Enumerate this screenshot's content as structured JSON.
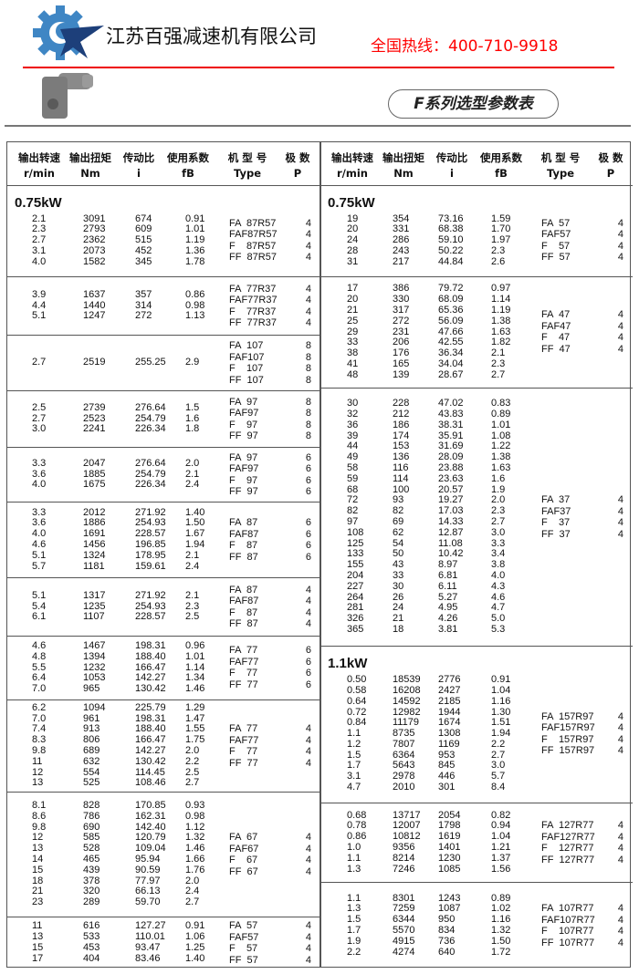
{
  "header": {
    "company": "江苏百强减速机有限公司",
    "hotline": "全国热线：400-710-9918",
    "badge": "F系列选型参数表",
    "logo_icon": "gear-star-logo",
    "product_image": "gearbox-image",
    "colors": {
      "hotline": "#ff0000",
      "rule": "#e00000",
      "logo_gear": "#3f86c4",
      "logo_star": "#1d3f7a"
    }
  },
  "columns": [
    {
      "cn": "输出转速",
      "en": "r/min"
    },
    {
      "cn": "输出扭矩",
      "en": "Nm"
    },
    {
      "cn": "传动比",
      "en": "i"
    },
    {
      "cn": "使用系数",
      "en": "fB"
    },
    {
      "cn": "机 型 号",
      "en": "Type"
    },
    {
      "cn": "极  数",
      "en": "P"
    }
  ],
  "left": [
    {
      "power": "0.75kW",
      "rows": [
        [
          "2.1",
          "3091",
          "674",
          "0.91"
        ],
        [
          "2.3",
          "2793",
          "609",
          "1.01"
        ],
        [
          "2.7",
          "2362",
          "515",
          "1.19"
        ],
        [
          "3.1",
          "2073",
          "452",
          "1.36"
        ],
        [
          "4.0",
          "1582",
          "345",
          "1.78"
        ]
      ],
      "types": [
        "FA  87R57",
        "FAF87R57",
        "F    87R57",
        "FF  87R57"
      ],
      "poles": [
        "4",
        "4",
        "4",
        "4"
      ]
    },
    {
      "rows": [
        [
          "3.9",
          "1637",
          "357",
          "0.86"
        ],
        [
          "4.4",
          "1440",
          "314",
          "0.98"
        ],
        [
          "5.1",
          "1247",
          "272",
          "1.13"
        ]
      ],
      "types": [
        "FA  77R37",
        "FAF77R37",
        "F    77R37",
        "FF  77R37"
      ],
      "poles": [
        "4",
        "4",
        "4",
        "4"
      ]
    },
    {
      "rows": [
        [
          "2.7",
          "2519",
          "255.25",
          "2.9"
        ]
      ],
      "types": [
        "FA  107",
        "FAF107",
        "F    107",
        "FF  107"
      ],
      "poles": [
        "8",
        "8",
        "8",
        "8"
      ]
    },
    {
      "rows": [
        [
          "2.5",
          "2739",
          "276.64",
          "1.5"
        ],
        [
          "2.7",
          "2523",
          "254.79",
          "1.6"
        ],
        [
          "3.0",
          "2241",
          "226.34",
          "1.8"
        ]
      ],
      "types": [
        "FA  97",
        "FAF97",
        "F    97",
        "FF  97"
      ],
      "poles": [
        "8",
        "8",
        "8",
        "8"
      ]
    },
    {
      "rows": [
        [
          "3.3",
          "2047",
          "276.64",
          "2.0"
        ],
        [
          "3.6",
          "1885",
          "254.79",
          "2.1"
        ],
        [
          "4.0",
          "1675",
          "226.34",
          "2.4"
        ]
      ],
      "types": [
        "FA  97",
        "FAF97",
        "F    97",
        "FF  97"
      ],
      "poles": [
        "6",
        "6",
        "6",
        "6"
      ]
    },
    {
      "rows": [
        [
          "3.3",
          "2012",
          "271.92",
          "1.40"
        ],
        [
          "3.6",
          "1886",
          "254.93",
          "1.50"
        ],
        [
          "4.0",
          "1691",
          "228.57",
          "1.67"
        ],
        [
          "4.6",
          "1456",
          "196.85",
          "1.94"
        ],
        [
          "5.1",
          "1324",
          "178.95",
          "2.1"
        ],
        [
          "5.7",
          "1181",
          "159.61",
          "2.4"
        ]
      ],
      "types": [
        "FA  87",
        "FAF87",
        "F    87",
        "FF  87"
      ],
      "poles": [
        "6",
        "6",
        "6",
        "6"
      ]
    },
    {
      "rows": [
        [
          "5.1",
          "1317",
          "271.92",
          "2.1"
        ],
        [
          "5.4",
          "1235",
          "254.93",
          "2.3"
        ],
        [
          "6.1",
          "1107",
          "228.57",
          "2.5"
        ]
      ],
      "types": [
        "FA  87",
        "FAF87",
        "F    87",
        "FF  87"
      ],
      "poles": [
        "4",
        "4",
        "4",
        "4"
      ]
    },
    {
      "rows": [
        [
          "4.6",
          "1467",
          "198.31",
          "0.96"
        ],
        [
          "4.8",
          "1394",
          "188.40",
          "1.01"
        ],
        [
          "5.5",
          "1232",
          "166.47",
          "1.14"
        ],
        [
          "6.4",
          "1053",
          "142.27",
          "1.34"
        ],
        [
          "7.0",
          "965",
          "130.42",
          "1.46"
        ]
      ],
      "types": [
        "FA  77",
        "FAF77",
        "F    77",
        "FF  77"
      ],
      "poles": [
        "6",
        "6",
        "6",
        "6"
      ]
    },
    {
      "rows": [
        [
          "6.2",
          "1094",
          "225.79",
          "1.29"
        ],
        [
          "7.0",
          "961",
          "198.31",
          "1.47"
        ],
        [
          "7.4",
          "913",
          "188.40",
          "1.55"
        ],
        [
          "8.3",
          "806",
          "166.47",
          "1.75"
        ],
        [
          "9.8",
          "689",
          "142.27",
          "2.0"
        ],
        [
          "11",
          "632",
          "130.42",
          "2.2"
        ],
        [
          "12",
          "554",
          "114.45",
          "2.5"
        ],
        [
          "13",
          "525",
          "108.46",
          "2.7"
        ]
      ],
      "types": [
        "FA  77",
        "FAF77",
        "F    77",
        "FF  77"
      ],
      "poles": [
        "4",
        "4",
        "4",
        "4"
      ]
    },
    {
      "rows": [
        [
          "8.1",
          "828",
          "170.85",
          "0.93"
        ],
        [
          "8.6",
          "786",
          "162.31",
          "0.98"
        ],
        [
          "9.8",
          "690",
          "142.40",
          "1.12"
        ],
        [
          "12",
          "585",
          "120.79",
          "1.32"
        ],
        [
          "13",
          "528",
          "109.04",
          "1.46"
        ],
        [
          "14",
          "465",
          "95.94",
          "1.66"
        ],
        [
          "15",
          "439",
          "90.59",
          "1.76"
        ],
        [
          "18",
          "378",
          "77.97",
          "2.0"
        ],
        [
          "21",
          "320",
          "66.13",
          "2.4"
        ],
        [
          "23",
          "289",
          "59.70",
          "2.7"
        ]
      ],
      "types": [
        "FA  67",
        "FAF67",
        "F    67",
        "FF  67"
      ],
      "poles": [
        "4",
        "4",
        "4",
        "4"
      ]
    },
    {
      "rows": [
        [
          "11",
          "616",
          "127.27",
          "0.91"
        ],
        [
          "13",
          "533",
          "110.01",
          "1.06"
        ],
        [
          "15",
          "453",
          "93.47",
          "1.25"
        ],
        [
          "17",
          "404",
          "83.46",
          "1.40"
        ]
      ],
      "types": [
        "FA  57",
        "FAF57",
        "F    57",
        "FF  57"
      ],
      "poles": [
        "4",
        "4",
        "4",
        "4"
      ]
    }
  ],
  "right": [
    {
      "power": "0.75kW",
      "rows": [
        [
          "19",
          "354",
          "73.16",
          "1.59"
        ],
        [
          "20",
          "331",
          "68.38",
          "1.70"
        ],
        [
          "24",
          "286",
          "59.10",
          "1.97"
        ],
        [
          "28",
          "243",
          "50.22",
          "2.3"
        ],
        [
          "31",
          "217",
          "44.84",
          "2.6"
        ]
      ],
      "types": [
        "FA  57",
        "FAF57",
        "F    57",
        "FF  57"
      ],
      "poles": [
        "4",
        "4",
        "4",
        "4"
      ]
    },
    {
      "rows": [
        [
          "17",
          "386",
          "79.72",
          "0.97"
        ],
        [
          "20",
          "330",
          "68.09",
          "1.14"
        ],
        [
          "21",
          "317",
          "65.36",
          "1.19"
        ],
        [
          "25",
          "272",
          "56.09",
          "1.38"
        ],
        [
          "29",
          "231",
          "47.66",
          "1.63"
        ],
        [
          "33",
          "206",
          "42.55",
          "1.82"
        ],
        [
          "38",
          "176",
          "36.34",
          "2.1"
        ],
        [
          "41",
          "165",
          "34.04",
          "2.3"
        ],
        [
          "48",
          "139",
          "28.67",
          "2.7"
        ]
      ],
      "types": [
        "FA  47",
        "FAF47",
        "F    47",
        "FF  47"
      ],
      "poles": [
        "4",
        "4",
        "4",
        "4"
      ]
    },
    {
      "rows": [
        [
          "30",
          "228",
          "47.02",
          "0.83"
        ],
        [
          "32",
          "212",
          "43.83",
          "0.89"
        ],
        [
          "36",
          "186",
          "38.31",
          "1.01"
        ],
        [
          "39",
          "174",
          "35.91",
          "1.08"
        ],
        [
          "44",
          "153",
          "31.69",
          "1.22"
        ],
        [
          "49",
          "136",
          "28.09",
          "1.38"
        ],
        [
          "58",
          "116",
          "23.88",
          "1.63"
        ],
        [
          "59",
          "114",
          "23.63",
          "1.6"
        ],
        [
          "68",
          "100",
          "20.57",
          "1.9"
        ],
        [
          "72",
          "93",
          "19.27",
          "2.0"
        ],
        [
          "82",
          "82",
          "17.03",
          "2.3"
        ],
        [
          "97",
          "69",
          "14.33",
          "2.7"
        ],
        [
          "108",
          "62",
          "12.87",
          "3.0"
        ],
        [
          "125",
          "54",
          "11.08",
          "3.3"
        ],
        [
          "133",
          "50",
          "10.42",
          "3.4"
        ],
        [
          "155",
          "43",
          "8.97",
          "3.8"
        ],
        [
          "204",
          "33",
          "6.81",
          "4.0"
        ],
        [
          "227",
          "30",
          "6.11",
          "4.3"
        ],
        [
          "264",
          "26",
          "5.27",
          "4.6"
        ],
        [
          "281",
          "24",
          "4.95",
          "4.7"
        ],
        [
          "326",
          "21",
          "4.26",
          "5.0"
        ],
        [
          "365",
          "18",
          "3.81",
          "5.3"
        ]
      ],
      "types": [
        "FA  37",
        "FAF37",
        "F    37",
        "FF  37"
      ],
      "poles": [
        "4",
        "4",
        "4",
        "4"
      ]
    },
    {
      "power": "1.1kW",
      "rows": [
        [
          "0.50",
          "18539",
          "2776",
          "0.91"
        ],
        [
          "0.58",
          "16208",
          "2427",
          "1.04"
        ],
        [
          "0.64",
          "14592",
          "2185",
          "1.16"
        ],
        [
          "0.72",
          "12982",
          "1944",
          "1.30"
        ],
        [
          "0.84",
          "11179",
          "1674",
          "1.51"
        ],
        [
          "1.1",
          "8735",
          "1308",
          "1.94"
        ],
        [
          "1.2",
          "7807",
          "1169",
          "2.2"
        ],
        [
          "1.5",
          "6364",
          "953",
          "2.7"
        ],
        [
          "1.7",
          "5643",
          "845",
          "3.0"
        ],
        [
          "3.1",
          "2978",
          "446",
          "5.7"
        ],
        [
          "4.7",
          "2010",
          "301",
          "8.4"
        ]
      ],
      "types": [
        "FA  157R97",
        "FAF157R97",
        "F    157R97",
        "FF  157R97"
      ],
      "poles": [
        "4",
        "4",
        "4",
        "4"
      ]
    },
    {
      "rows": [
        [
          "0.68",
          "13717",
          "2054",
          "0.82"
        ],
        [
          "0.78",
          "12007",
          "1798",
          "0.94"
        ],
        [
          "0.86",
          "10812",
          "1619",
          "1.04"
        ],
        [
          "1.0",
          "9356",
          "1401",
          "1.21"
        ],
        [
          "1.1",
          "8214",
          "1230",
          "1.37"
        ],
        [
          "1.3",
          "7246",
          "1085",
          "1.56"
        ]
      ],
      "types": [
        "FA  127R77",
        "FAF127R77",
        "F    127R77",
        "FF  127R77"
      ],
      "poles": [
        "4",
        "4",
        "4",
        "4"
      ]
    },
    {
      "rows": [
        [
          "1.1",
          "8301",
          "1243",
          "0.89"
        ],
        [
          "1.3",
          "7259",
          "1087",
          "1.02"
        ],
        [
          "1.5",
          "6344",
          "950",
          "1.16"
        ],
        [
          "1.7",
          "5570",
          "834",
          "1.32"
        ],
        [
          "1.9",
          "4915",
          "736",
          "1.50"
        ],
        [
          "2.2",
          "4274",
          "640",
          "1.72"
        ]
      ],
      "types": [
        "FA  107R77",
        "FAF107R77",
        "F    107R77",
        "FF  107R77"
      ],
      "poles": [
        "4",
        "4",
        "4",
        "4"
      ]
    }
  ]
}
